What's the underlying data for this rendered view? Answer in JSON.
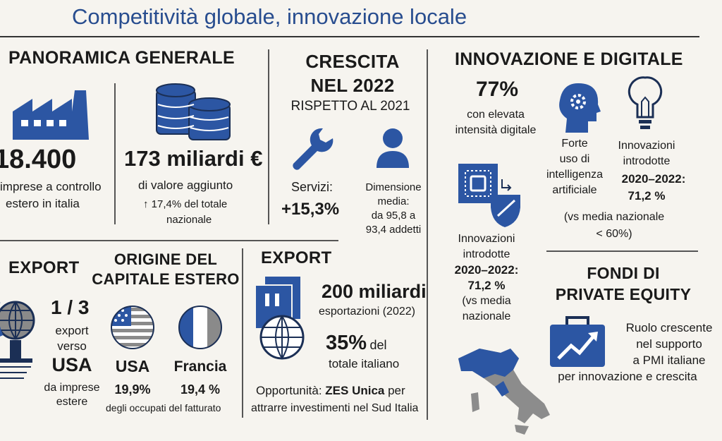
{
  "title": "Competitività globale, innovazione locale",
  "panoramica": {
    "heading": "PANORAMICA GENERALE",
    "imprese_value": "18.400",
    "imprese_label": [
      "imprese a controllo",
      "estero in italia"
    ],
    "valore_value": "173 miliardi €",
    "valore_label": "di valore aggiunto",
    "valore_sub": "↑ 17,4% del totale",
    "valore_sub2": "nazionale"
  },
  "crescita": {
    "heading1": "CRESCITA",
    "heading2": "NEL 2022",
    "subheading": "RISPETTO AL 2021",
    "servizi_label": "Servizi:",
    "servizi_value": "+15,3%",
    "dimensione_lines": [
      "Dimensione",
      "media:",
      "da 95,8 a",
      "93,4 addetti"
    ]
  },
  "innovazione": {
    "heading": "INNOVAZIONE E DIGITALE",
    "pct": "77%",
    "pct_label": [
      "con elevata",
      "intensità digitale"
    ],
    "ai_lines": [
      "Forte",
      "uso di",
      "intelligenza",
      "artificiale"
    ],
    "innov_lines": [
      "Innovazioni",
      "introdotte"
    ],
    "innov_years": "2020–2022:",
    "innov_value": "71,2 %",
    "innov_vs": [
      "(vs media nazionale",
      "< 60%)"
    ],
    "innov2_lines": [
      "Innovazioni",
      "introdotte",
      "2020–2022:",
      "71,2 %",
      "(vs media",
      "nazionale"
    ]
  },
  "export_left": {
    "heading": "EXPORT",
    "value": "1 / 3",
    "lines": [
      "export",
      "verso"
    ],
    "usa": "USA",
    "tail": [
      "da imprese",
      "estere"
    ]
  },
  "origine": {
    "heading1": "ORIGINE DEL",
    "heading2": "CAPITALE ESTERO",
    "usa_label": "USA",
    "usa_value": "19,9%",
    "fra_label": "Francia",
    "fra_value": "19,4 %",
    "footnote": "degli occupati del fatturato"
  },
  "export_mid": {
    "heading": "EXPORT",
    "value": "200 miliardi",
    "value_label": "esportazioni (2022)",
    "pct": "35%",
    "pct_word": "del",
    "pct_label": "totale italiano",
    "opp_prefix": "Opportunità: ",
    "opp_bold": "ZES Unica",
    "opp_suffix": " per",
    "opp_line2": "attrarre investimenti nel Sud Italia"
  },
  "fondi": {
    "heading1": "FONDI DI",
    "heading2": "PRIVATE EQUITY",
    "lines": [
      "Ruolo crescente",
      "nel supporto",
      "a PMI italiane",
      "per innovazione e crescita"
    ]
  },
  "colors": {
    "accent": "#284d8f",
    "icon_blue": "#2c56a3",
    "navy": "#1b2f55"
  }
}
